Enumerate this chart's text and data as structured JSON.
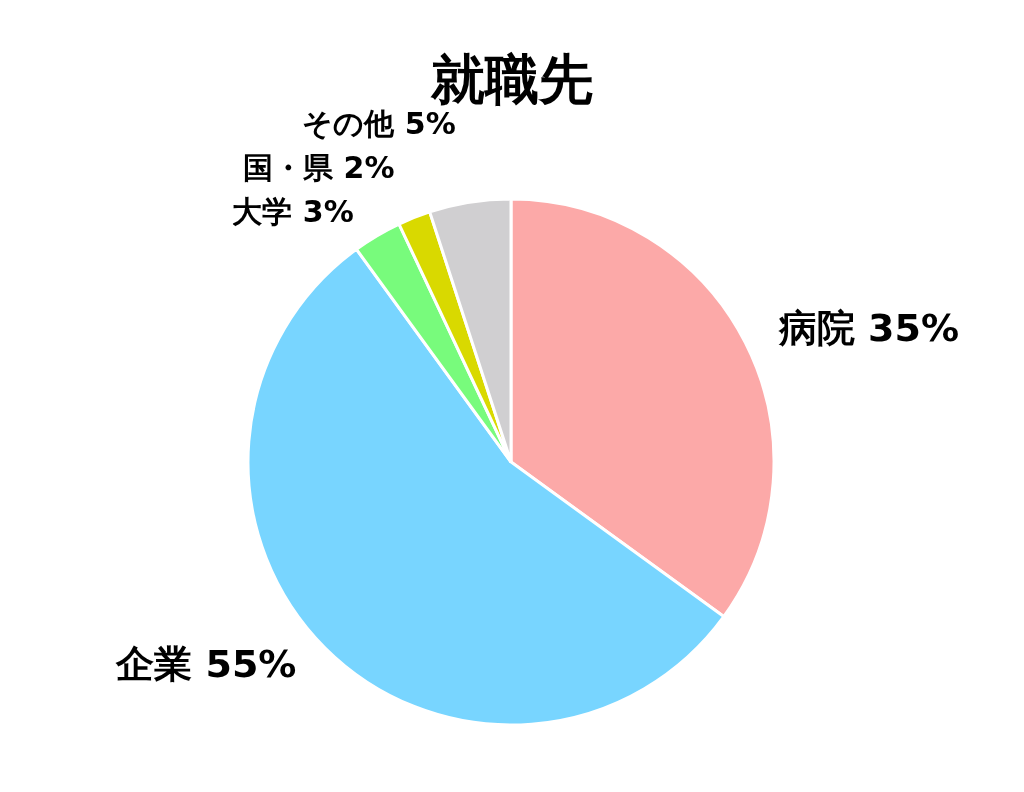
{
  "chart_data": {
    "type": "pie",
    "title": "就職先",
    "categories": [
      "病院",
      "企業",
      "大学",
      "国・県",
      "その他"
    ],
    "values": [
      35,
      55,
      3,
      2,
      5
    ],
    "value_labels": [
      "35%",
      "55%",
      "3%",
      "2%",
      "5%"
    ],
    "colors": [
      "#fca9a8",
      "#78d5ff",
      "#78fb7c",
      "#d9d900",
      "#d0cfd1"
    ]
  }
}
